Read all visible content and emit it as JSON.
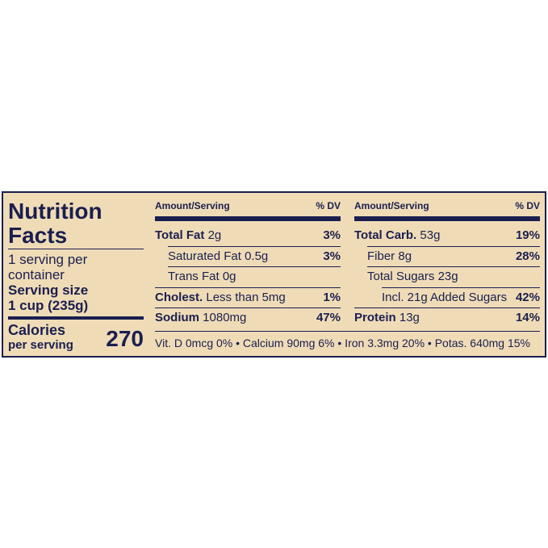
{
  "title_line1": "Nutrition",
  "title_line2": "Facts",
  "servings_line1": "1 serving per",
  "servings_line2": "container",
  "serving_size_label": "Serving size",
  "serving_size": "1 cup (235g)",
  "calories_label": "Calories",
  "calories_sub": "per serving",
  "calories": 270,
  "tables": [
    {
      "header": [
        "Amount/Serving",
        "% DV"
      ],
      "rows": [
        {
          "name": "Total Fat",
          "amount": "2g",
          "dv": "3%",
          "bold": true,
          "indent": 0
        },
        {
          "name": "Saturated Fat",
          "amount": "0.5g",
          "dv": "3%",
          "bold": false,
          "indent": 1
        },
        {
          "name": "Trans Fat",
          "amount": "0g",
          "bold": false,
          "indent": 1
        },
        {
          "name": "Cholest.",
          "amount": "Less than 5mg",
          "dv": "1%",
          "bold": true,
          "indent": 0
        },
        {
          "name": "Sodium",
          "amount": "1080mg",
          "dv": "47%",
          "bold": true,
          "indent": 0
        }
      ]
    },
    {
      "header": [
        "Amount/Serving",
        "% DV"
      ],
      "rows": [
        {
          "name": "Total Carb.",
          "amount": "53g",
          "dv": "19%",
          "bold": true,
          "indent": 0
        },
        {
          "name": "Fiber",
          "amount": "8g",
          "dv": "28%",
          "bold": false,
          "indent": 1
        },
        {
          "name": "Total Sugars",
          "amount": "23g",
          "bold": false,
          "indent": 1
        },
        {
          "name": "Incl. 21g Added Sugars",
          "dv": "42%",
          "bold": false,
          "indent": 2
        },
        {
          "name": "Protein",
          "amount": "13g",
          "dv": "14%",
          "bold": true,
          "indent": 0
        }
      ]
    }
  ],
  "vitamins": "Vit. D 0mcg 0% • Calcium 90mg 6% • Iron 3.3mg 20% • Potas. 640mg 15%"
}
